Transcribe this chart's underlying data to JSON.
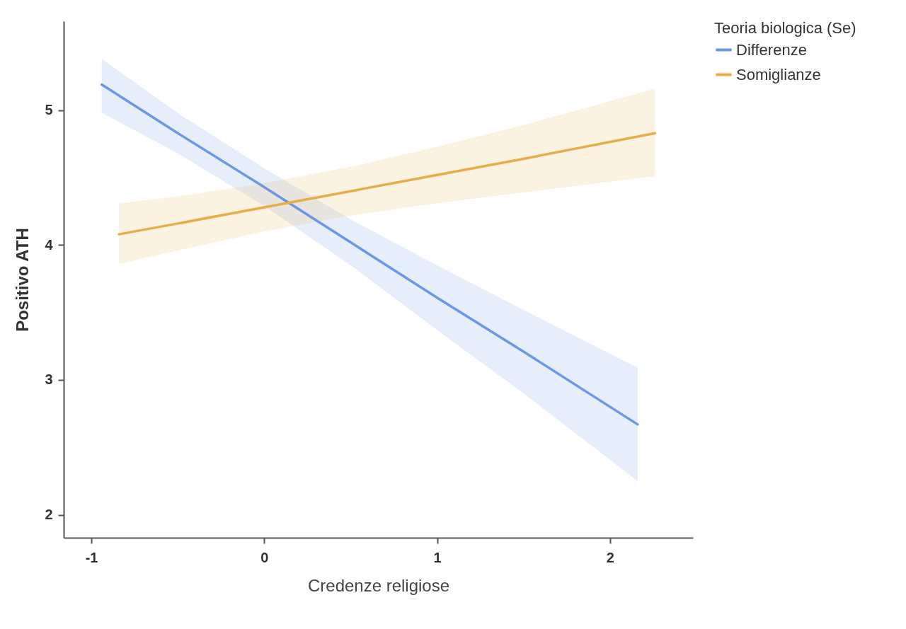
{
  "chart_data": {
    "type": "line",
    "xlabel": "Credenze religiose",
    "ylabel": "Positivo ATH",
    "legend_title": "Teoria biologica (Se)",
    "series": [
      {
        "name": "Differenze",
        "color": "#6a98e4",
        "x": [
          -0.94,
          -0.5,
          0,
          0.5,
          1,
          1.5,
          2.16
        ],
        "values": [
          5.19,
          4.83,
          4.43,
          4.02,
          3.61,
          3.21,
          2.67
        ],
        "lower": [
          4.98,
          4.68,
          4.29,
          3.85,
          3.37,
          2.9,
          2.25
        ],
        "upper": [
          5.38,
          4.98,
          4.57,
          4.19,
          3.85,
          3.52,
          3.09
        ]
      },
      {
        "name": "Somiglianze",
        "color": "#e6ad48",
        "x": [
          -0.84,
          -0.5,
          0,
          0.5,
          1,
          1.5,
          2.26
        ],
        "values": [
          4.08,
          4.16,
          4.28,
          4.4,
          4.52,
          4.64,
          4.83
        ],
        "lower": [
          3.86,
          3.96,
          4.1,
          4.22,
          4.31,
          4.39,
          4.51
        ],
        "upper": [
          4.31,
          4.36,
          4.46,
          4.58,
          4.73,
          4.89,
          5.16
        ]
      }
    ],
    "xlim": [
      -1.16,
      2.48
    ],
    "ylim": [
      1.83,
      5.66
    ],
    "xticks": [
      -1,
      0,
      1,
      2
    ],
    "yticks": [
      2,
      3,
      4,
      5
    ],
    "grid": false,
    "legend": "right",
    "line_style": "solid"
  }
}
